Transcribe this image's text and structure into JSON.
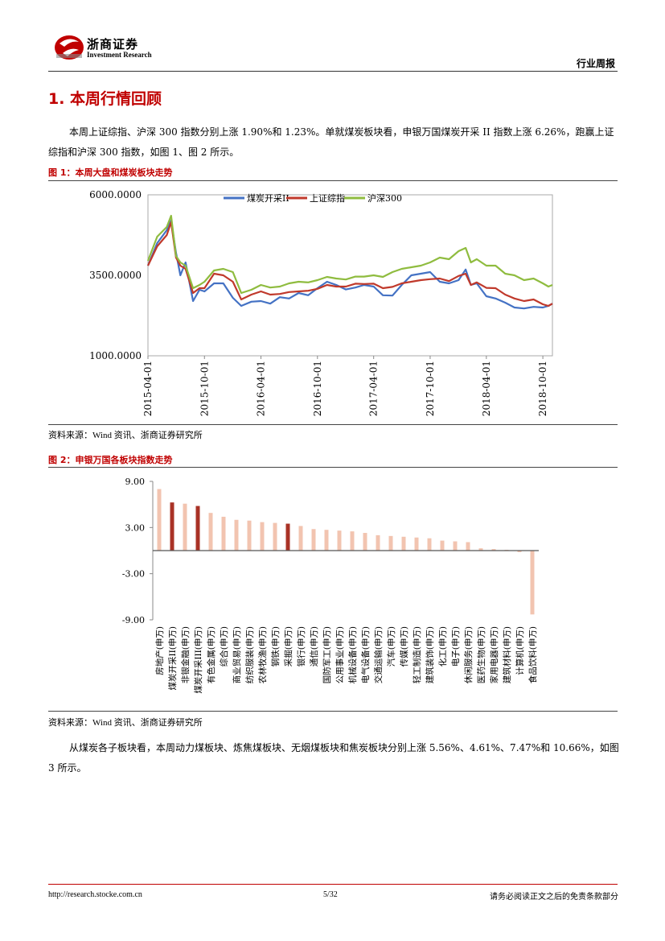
{
  "header": {
    "logo_cn": "浙商证券",
    "logo_en": "Investment Research",
    "report_type": "行业周报",
    "logo_color": "#c00000"
  },
  "section": {
    "title": "1. 本周行情回顾",
    "para1": "本周上证综指、沪深 300 指数分别上涨 1.90%和 1.23%。单就煤炭板块看，申银万国煤炭开采 II 指数上涨 6.26%，跑赢上证综指和沪深 300 指数，如图 1、图 2 所示。",
    "para2": "从煤炭各子板块看，本周动力煤板块、炼焦煤板块、无烟煤板块和焦炭板块分别上涨 5.56%、4.61%、7.47%和 10.66%，如图 3 所示。"
  },
  "figure1": {
    "title": "图 1：本周大盘和煤炭板块走势",
    "source": "资料来源：Wind 资讯、浙商证券研究所"
  },
  "figure2": {
    "title": "图 2：申银万国各板块指数走势",
    "source": "资料来源：Wind 资讯、浙商证券研究所"
  },
  "chart_data": [
    {
      "type": "line",
      "ylim": [
        1000,
        6000
      ],
      "yticks": [
        "1000.0000",
        "3500.0000",
        "6000.0000"
      ],
      "xticks": [
        "2015-04-01",
        "2015-10-01",
        "2016-04-01",
        "2016-10-01",
        "2017-04-01",
        "2017-10-01",
        "2018-04-01",
        "2018-10-01"
      ],
      "x": [
        "2015-04-01",
        "2015-05-01",
        "2015-06-01",
        "2015-06-15",
        "2015-07-01",
        "2015-07-15",
        "2015-08-01",
        "2015-08-25",
        "2015-09-15",
        "2015-10-01",
        "2015-11-01",
        "2015-12-01",
        "2016-01-01",
        "2016-01-28",
        "2016-03-01",
        "2016-04-01",
        "2016-05-01",
        "2016-06-01",
        "2016-07-01",
        "2016-08-01",
        "2016-09-01",
        "2016-10-01",
        "2016-11-01",
        "2016-12-01",
        "2017-01-01",
        "2017-02-01",
        "2017-03-01",
        "2017-04-01",
        "2017-05-01",
        "2017-06-01",
        "2017-07-01",
        "2017-08-01",
        "2017-09-01",
        "2017-10-01",
        "2017-11-01",
        "2017-12-01",
        "2018-01-01",
        "2018-01-24",
        "2018-02-10",
        "2018-03-01",
        "2018-04-01",
        "2018-05-01",
        "2018-06-01",
        "2018-07-01",
        "2018-08-01",
        "2018-09-01",
        "2018-10-01",
        "2018-10-19",
        "2018-11-01"
      ],
      "series": [
        {
          "name": "煤炭开采II",
          "color": "#4472c4",
          "values": [
            3800,
            4500,
            4900,
            5200,
            4200,
            3500,
            3900,
            2700,
            3050,
            3000,
            3250,
            3250,
            2800,
            2550,
            2680,
            2700,
            2620,
            2820,
            2780,
            2950,
            2880,
            3100,
            3300,
            3200,
            3060,
            3120,
            3200,
            3150,
            2880,
            2870,
            3200,
            3500,
            3550,
            3600,
            3300,
            3250,
            3350,
            3680,
            3200,
            3250,
            2850,
            2780,
            2650,
            2500,
            2470,
            2520,
            2500,
            2550,
            2620
          ]
        },
        {
          "name": "上证综指",
          "color": "#c0392b",
          "values": [
            3800,
            4400,
            4750,
            5150,
            4050,
            3800,
            3700,
            2950,
            3100,
            3100,
            3550,
            3500,
            3300,
            2750,
            2900,
            3000,
            2900,
            2920,
            2980,
            3000,
            3020,
            3080,
            3200,
            3150,
            3150,
            3240,
            3230,
            3240,
            3100,
            3140,
            3250,
            3300,
            3350,
            3380,
            3400,
            3320,
            3480,
            3550,
            3200,
            3280,
            3110,
            3100,
            2900,
            2780,
            2700,
            2750,
            2600,
            2550,
            2620
          ]
        },
        {
          "name": "沪深300",
          "color": "#8fbc3f",
          "values": [
            3950,
            4700,
            5000,
            5350,
            4100,
            3900,
            3800,
            3100,
            3200,
            3300,
            3650,
            3700,
            3600,
            2950,
            3050,
            3200,
            3120,
            3150,
            3250,
            3300,
            3280,
            3350,
            3450,
            3400,
            3370,
            3460,
            3460,
            3500,
            3450,
            3600,
            3700,
            3750,
            3800,
            3900,
            4050,
            4000,
            4250,
            4350,
            3900,
            4000,
            3800,
            3800,
            3550,
            3500,
            3350,
            3400,
            3250,
            3150,
            3200
          ]
        }
      ]
    },
    {
      "type": "bar",
      "ylim": [
        -9,
        9
      ],
      "yticks": [
        "9.00",
        "3.00",
        "-3.00",
        "-9.00"
      ],
      "categories": [
        "房地产(申万)",
        "煤炭开采II(申万)",
        "非银金融(申万)",
        "煤炭开采III(申万)",
        "有色金属(申万)",
        "综合(申万)",
        "商业贸易(申万)",
        "纺织服装(申万)",
        "农林牧渔(申万)",
        "钢铁(申万)",
        "采掘(申万)",
        "银行(申万)",
        "通信(申万)",
        "国防军工(申万)",
        "公用事业(申万)",
        "机械设备(申万)",
        "电气设备(申万)",
        "交通运输(申万)",
        "汽车(申万)",
        "传媒(申万)",
        "轻工制造(申万)",
        "建筑装饰(申万)",
        "化工(申万)",
        "电子(申万)",
        "休闲服务(申万)",
        "医药生物(申万)",
        "家用电器(申万)",
        "建筑材料(申万)",
        "计算机(申万)",
        "食品饮料(申万)"
      ],
      "values": [
        8.0,
        6.26,
        6.1,
        5.8,
        4.9,
        4.4,
        4.0,
        3.9,
        3.7,
        3.6,
        3.5,
        3.2,
        2.8,
        2.7,
        2.6,
        2.5,
        2.3,
        2.0,
        1.9,
        1.8,
        1.7,
        1.6,
        1.3,
        1.2,
        1.1,
        0.3,
        0.2,
        0.1,
        -0.2,
        -8.3
      ],
      "highlight": [
        "煤炭开采II(申万)",
        "煤炭开采III(申万)",
        "采掘(申万)"
      ],
      "highlight_color": "#a93226",
      "bar_color": "#f2c4b0"
    }
  ],
  "footer": {
    "url": "http://research.stocke.com.cn",
    "page": "5/32",
    "disclaimer": "请务必阅读正文之后的免责条款部分"
  }
}
